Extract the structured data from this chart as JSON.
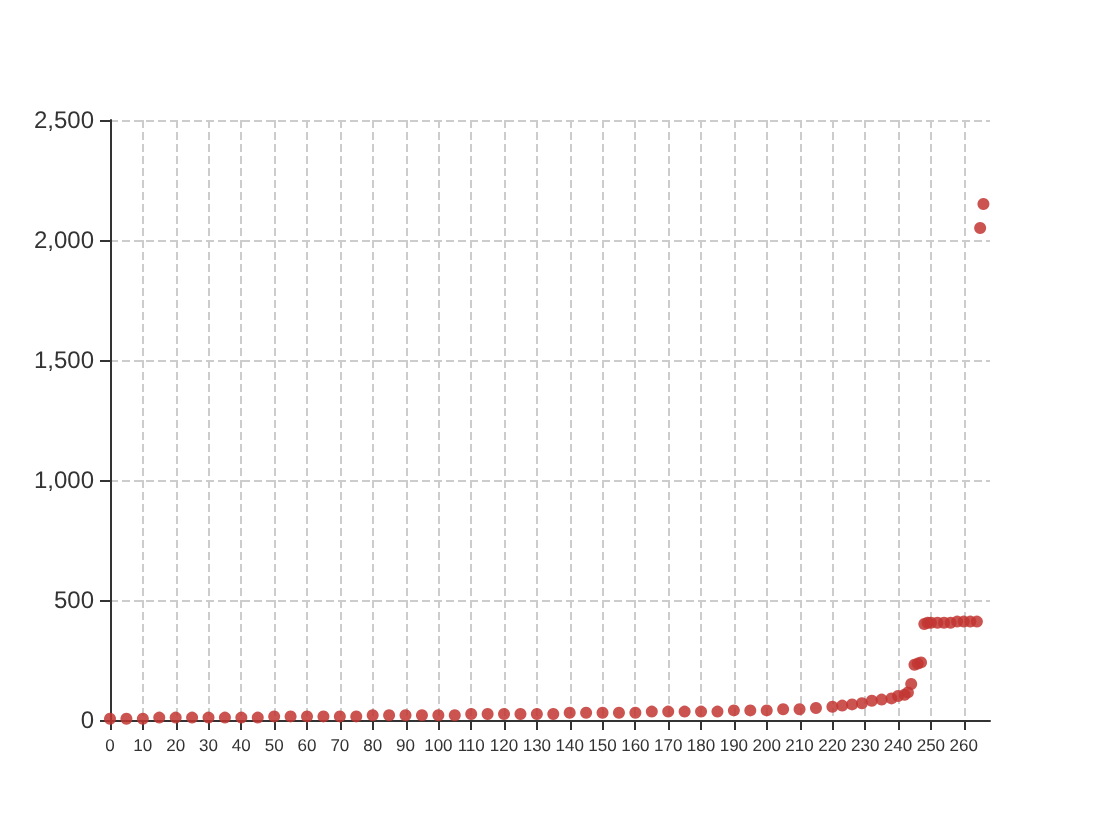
{
  "chart_data": {
    "type": "scatter",
    "x": [
      0,
      5,
      10,
      15,
      20,
      25,
      30,
      35,
      40,
      45,
      50,
      55,
      60,
      65,
      70,
      75,
      80,
      85,
      90,
      95,
      100,
      105,
      110,
      115,
      120,
      125,
      130,
      135,
      140,
      145,
      150,
      155,
      160,
      165,
      170,
      175,
      180,
      185,
      190,
      195,
      200,
      205,
      210,
      215,
      220,
      223,
      226,
      229,
      232,
      235,
      238,
      240,
      242,
      243,
      244,
      245,
      246,
      247,
      248,
      249,
      250,
      252,
      254,
      256,
      258,
      260,
      262,
      264,
      265,
      266
    ],
    "values": [
      5,
      5,
      5,
      10,
      10,
      10,
      10,
      10,
      10,
      10,
      15,
      15,
      15,
      15,
      15,
      15,
      20,
      20,
      20,
      20,
      20,
      20,
      25,
      25,
      25,
      25,
      25,
      25,
      30,
      30,
      30,
      30,
      30,
      35,
      35,
      35,
      35,
      35,
      40,
      40,
      40,
      45,
      45,
      50,
      55,
      60,
      65,
      70,
      80,
      85,
      90,
      100,
      105,
      115,
      150,
      230,
      235,
      240,
      400,
      405,
      405,
      405,
      405,
      405,
      410,
      410,
      410,
      410,
      2050,
      2150
    ],
    "color": "#c23531",
    "marker": "circle",
    "xlim": [
      0,
      268
    ],
    "xticks": [
      0,
      10,
      20,
      30,
      40,
      50,
      60,
      70,
      80,
      90,
      100,
      110,
      120,
      130,
      140,
      150,
      160,
      170,
      180,
      190,
      200,
      210,
      220,
      230,
      240,
      250,
      260
    ],
    "ylim": [
      0,
      2500
    ],
    "yticks": [
      0,
      500,
      {
        "value": 1000,
        "label": "1,000"
      },
      {
        "value": 1500,
        "label": "1,500"
      },
      {
        "value": 2000,
        "label": "2,000"
      },
      {
        "value": 2500,
        "label": "2,500"
      }
    ],
    "grid": true
  }
}
